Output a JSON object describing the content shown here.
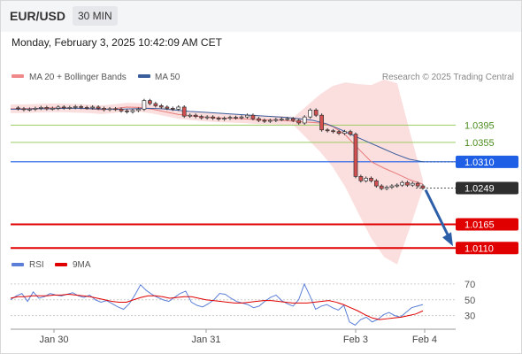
{
  "header": {
    "pair": "EUR/USD",
    "timeframe": "30 MIN"
  },
  "datetime": "Monday, February 3, 2025 10:42:09 AM CET",
  "legend": {
    "items": [
      {
        "label": "MA 20 + Bollinger Bands",
        "color": "#f08a8a"
      },
      {
        "label": "MA 50",
        "color": "#3a5d9c"
      }
    ],
    "credit": "Research © 2025 Trading Central"
  },
  "rsi_legend": {
    "items": [
      {
        "label": "RSI",
        "color": "#5b7fd6"
      },
      {
        "label": "9MA",
        "color": "#e00000"
      }
    ]
  },
  "chart_data": [
    {
      "type": "candlestick",
      "title": "",
      "x_labels": [
        "Jan 30",
        "Jan 31",
        "Feb 3",
        "Feb 4"
      ],
      "ylim": [
        1.009,
        1.048
      ],
      "levels": [
        {
          "value": 1.0395,
          "label": "1.0395",
          "role": "resistance",
          "color": "#9ccc65"
        },
        {
          "value": 1.0355,
          "label": "1.0355",
          "role": "resistance",
          "color": "#9ccc65"
        },
        {
          "value": 1.031,
          "label": "1.0310",
          "role": "pivot",
          "color": "#1e5fe6"
        },
        {
          "value": 1.0249,
          "label": "1.0249",
          "role": "last_price",
          "color": "#333333"
        },
        {
          "value": 1.0165,
          "label": "1.0165",
          "role": "support",
          "color": "#e00000"
        },
        {
          "value": 1.011,
          "label": "1.0110",
          "role": "support",
          "color": "#e00000"
        }
      ],
      "price_series": [
        1.0435,
        1.0433,
        1.0431,
        1.0432,
        1.0434,
        1.0436,
        1.0433,
        1.0434,
        1.0437,
        1.0435,
        1.0436,
        1.0438,
        1.0436,
        1.0435,
        1.0437,
        1.0434,
        1.0431,
        1.0433,
        1.0432,
        1.0428,
        1.0426,
        1.0429,
        1.0432,
        1.0452,
        1.0445,
        1.044,
        1.0437,
        1.0434,
        1.0432,
        1.0437,
        1.0416,
        1.0418,
        1.0415,
        1.0412,
        1.0414,
        1.0411,
        1.0409,
        1.0411,
        1.0413,
        1.0412,
        1.0414,
        1.0418,
        1.041,
        1.0406,
        1.0404,
        1.0406,
        1.0408,
        1.0409,
        1.041,
        1.0406,
        1.04,
        1.0414,
        1.043,
        1.0418,
        1.0384,
        1.0382,
        1.038,
        1.0376,
        1.038,
        1.0374,
        1.0276,
        1.0266,
        1.0272,
        1.0266,
        1.0254,
        1.0248,
        1.0251,
        1.0254,
        1.0256,
        1.0262,
        1.0256,
        1.026,
        1.0254,
        1.0249
      ],
      "ma20": [
        1.0433,
        1.0433,
        1.0434,
        1.0435,
        1.0435,
        1.0434,
        1.0433,
        1.0431,
        1.0433,
        1.0437,
        1.0436,
        1.0432,
        1.0426,
        1.042,
        1.0417,
        1.0414,
        1.0412,
        1.0411,
        1.041,
        1.0408,
        1.0407,
        1.0406,
        1.0404,
        1.0402,
        1.04,
        1.0392,
        1.0372,
        1.034,
        1.031,
        1.0295,
        1.0282,
        1.0268,
        1.0258
      ],
      "ma50": [
        1.0432,
        1.0432,
        1.0433,
        1.0433,
        1.0434,
        1.0434,
        1.0433,
        1.0432,
        1.0432,
        1.0433,
        1.0434,
        1.0433,
        1.043,
        1.0427,
        1.0425,
        1.0423,
        1.0421,
        1.0419,
        1.0417,
        1.0415,
        1.0413,
        1.041,
        1.0406,
        1.0398,
        1.0385,
        1.037,
        1.0356,
        1.0342,
        1.0328,
        1.0316,
        1.031
      ],
      "forecast_arrow": {
        "from": 1.0249,
        "to": 1.011
      }
    },
    {
      "type": "line",
      "title": "RSI",
      "ylim": [
        15,
        80
      ],
      "y_ticks": [
        "70",
        "50",
        "30"
      ],
      "series": [
        {
          "name": "RSI",
          "values": [
            50,
            55,
            58,
            48,
            60,
            52,
            54,
            58,
            56,
            55,
            57,
            59,
            55,
            53,
            56,
            50,
            47,
            49,
            45,
            41,
            38,
            45,
            56,
            69,
            62,
            57,
            53,
            50,
            48,
            53,
            58,
            61,
            47,
            43,
            41,
            45,
            50,
            58,
            57,
            52,
            48,
            46,
            44,
            40,
            42,
            48,
            53,
            56,
            49,
            45,
            42,
            50,
            70,
            55,
            38,
            42,
            44,
            40,
            37,
            43,
            22,
            18,
            25,
            28,
            22,
            25,
            31,
            34,
            30,
            28,
            34,
            40,
            42,
            44
          ]
        },
        {
          "name": "9MA",
          "values": [
            52,
            54,
            54,
            55,
            55,
            55,
            56,
            56,
            57,
            56,
            55,
            54,
            52,
            50,
            48,
            47,
            47,
            50,
            53,
            55,
            55,
            54,
            52,
            53,
            54,
            54,
            52,
            50,
            49,
            48,
            47,
            46,
            46,
            47,
            48,
            49,
            49,
            48,
            47,
            46,
            46,
            46,
            47,
            48,
            49,
            47,
            44,
            40,
            36,
            31,
            27,
            25,
            26,
            27,
            28,
            30,
            32,
            36
          ]
        }
      ]
    }
  ]
}
